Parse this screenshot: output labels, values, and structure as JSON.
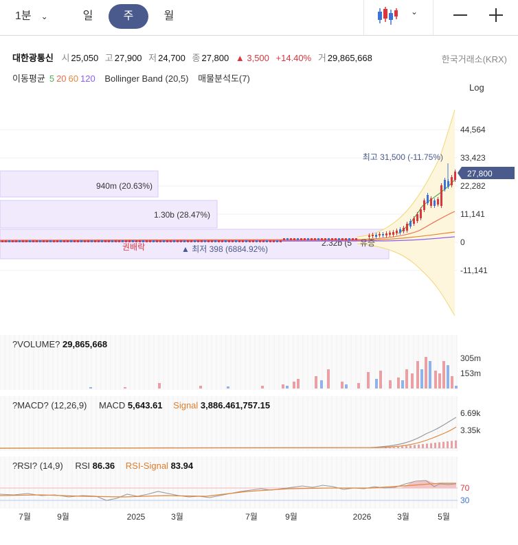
{
  "toolbar": {
    "period": "1분",
    "tabs": [
      "일",
      "주",
      "월"
    ],
    "active_tab": "주",
    "zoom_out_icon": "minus-icon",
    "zoom_in_icon": "plus-icon",
    "chart_type_icon": "candlestick-icon"
  },
  "stock": {
    "name": "대한광통신",
    "open_label": "시",
    "open": "25,050",
    "high_label": "고",
    "high": "27,900",
    "low_label": "저",
    "low": "24,700",
    "close_label": "종",
    "close": "27,800",
    "change": "▲ 3,500",
    "change_pct": "+14.40%",
    "volume_label": "거",
    "volume": "29,865,668",
    "exchange": "한국거래소(KRX)"
  },
  "indicators": {
    "ma_label": "이동평균",
    "ma_periods": [
      "5",
      "20",
      "60",
      "120"
    ],
    "ma_colors": [
      "#4caf50",
      "#ef6b4a",
      "#e0873b",
      "#8b5cf6"
    ],
    "bollinger": "Bollinger Band (20,5)",
    "volume_profile": "매물분석도(7)"
  },
  "scale_button": "Log",
  "colors": {
    "up": "#d9363e",
    "down": "#3b74d6",
    "accent": "#4b5a8c"
  },
  "chart_data": {
    "type": "candlestick",
    "y_ticks": [
      "44,564",
      "33,423",
      "22,282",
      "11,141",
      "0",
      "-11,141"
    ],
    "current_price_label": "27,800",
    "high_annotation": "최고 31,500 (-11.75%)",
    "low_annotation": "▲ 최저 398 (6884.92%)",
    "event_labels": [
      "권배락",
      "유증"
    ],
    "volume_profile_bars": [
      {
        "label": "940m (20.63%)",
        "pct": 20.63
      },
      {
        "label": "1.30b (28.47%)",
        "pct": 28.47
      },
      {
        "label": "2.32b (5",
        "pct": 50.9
      }
    ],
    "x_ticks": [
      "7월",
      "9월",
      "2025",
      "3월",
      "7월",
      "9월",
      "2026",
      "3월",
      "5월"
    ]
  },
  "volume_panel": {
    "title": "?VOLUME?",
    "value": "29,865,668",
    "y_ticks": [
      "305m",
      "153m"
    ]
  },
  "macd_panel": {
    "title": "?MACD? (12,26,9)",
    "macd_label": "MACD",
    "macd_value": "5,643.61",
    "signal_label": "Signal",
    "signal_value": "3,886.461,757.15",
    "y_ticks": [
      "6.69k",
      "3.35k"
    ]
  },
  "rsi_panel": {
    "title": "?RSI? (14,9)",
    "rsi_label": "RSI",
    "rsi_value": "86.36",
    "signal_label": "RSI-Signal",
    "signal_value": "83.94",
    "y_ticks": [
      "70",
      "30"
    ]
  }
}
